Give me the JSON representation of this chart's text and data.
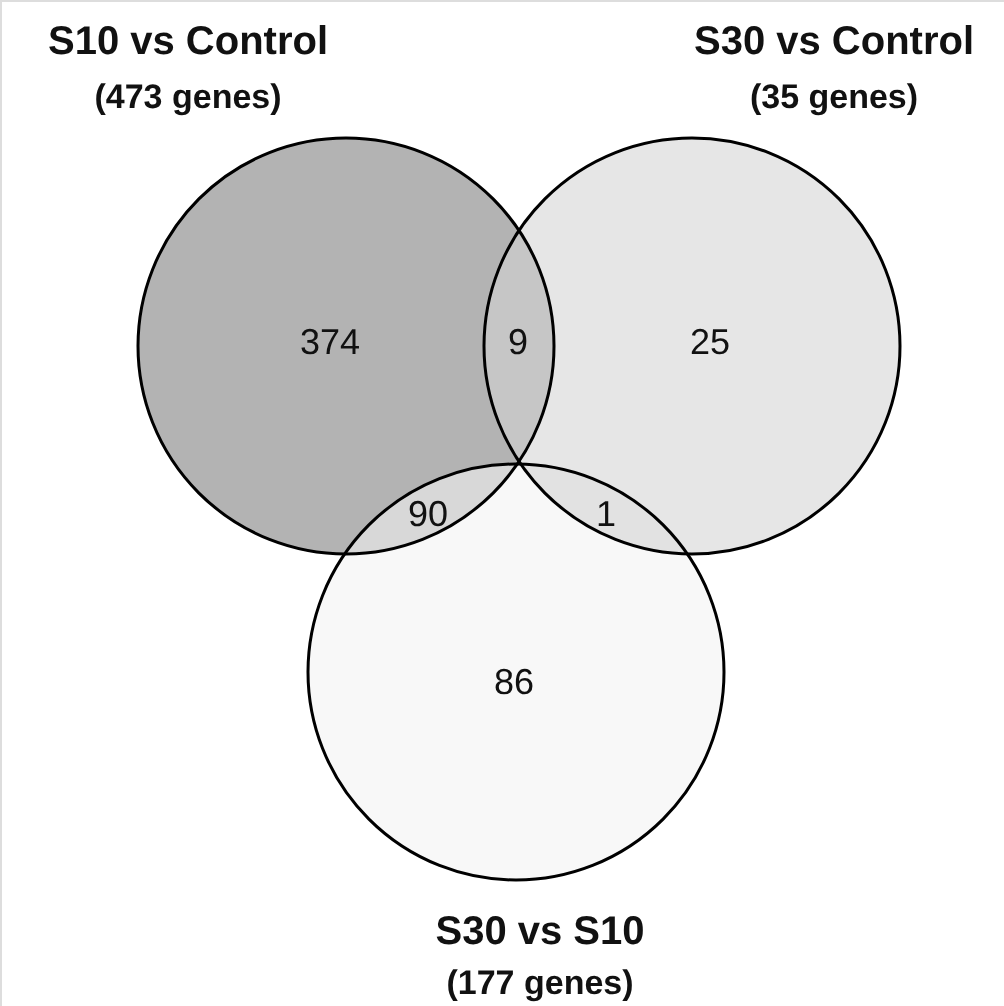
{
  "chart_data": {
    "type": "other",
    "categories": [
      null,
      null,
      null,
      null,
      null,
      null
    ],
    "values": [
      374,
      9,
      25,
      90,
      1,
      86
    ],
    "data_labels": true,
    "colors": [
      "#b3b3b3",
      "#c6c6c6",
      "#e6e6e6",
      "#d8d8d8",
      "#e2e2e2",
      "#f8f8f8"
    ],
    "annotations": [
      "S10 vs Control",
      "S30 vs Control",
      "S30 vs S10",
      "(473 genes)",
      "(35 genes)",
      "(177 genes)"
    ]
  }
}
